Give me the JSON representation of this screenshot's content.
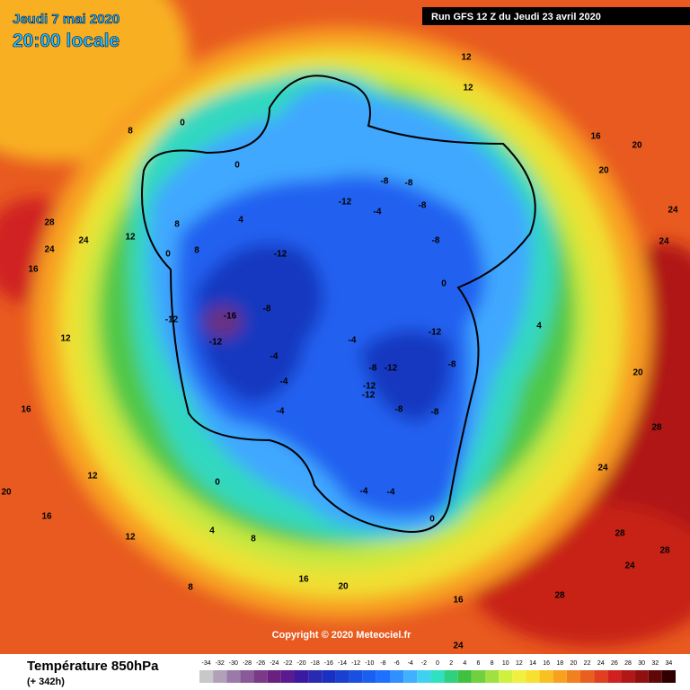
{
  "header": {
    "date": "Jeudi 7 mai 2020",
    "time": "20:00 locale",
    "run": "Run GFS 12 Z du Jeudi 23 avril 2020"
  },
  "map": {
    "labels": [
      28,
      24,
      24,
      16,
      12,
      8,
      4,
      0,
      -12,
      -12,
      -16,
      -12,
      -8,
      -4,
      -4,
      -4,
      -12,
      -8,
      -8,
      -8,
      -4,
      -8,
      -4,
      -12,
      -12,
      -8,
      -12,
      -12,
      -8,
      -8,
      -8,
      -4,
      -4,
      0,
      0,
      0,
      0,
      0,
      4,
      8,
      8,
      12,
      12,
      16,
      20,
      20,
      24,
      24,
      28,
      28,
      24,
      20,
      16,
      16,
      20,
      24,
      28,
      28,
      24,
      20,
      16,
      12,
      12,
      8,
      8,
      4,
      16,
      12
    ]
  },
  "copyright": "Copyright © 2020 Meteociel.fr",
  "legend": {
    "title": "Température 850hPa",
    "lead": "(+ 342h)",
    "ticks": [
      -34,
      -32,
      -30,
      -28,
      -26,
      -24,
      -22,
      -20,
      -18,
      -16,
      -14,
      -12,
      -10,
      -8,
      -6,
      -4,
      -2,
      0,
      2,
      4,
      6,
      8,
      10,
      12,
      14,
      16,
      18,
      20,
      22,
      24,
      26,
      28,
      30,
      32,
      34
    ],
    "colors": [
      "#c8c8c8",
      "#b0a0b8",
      "#9a7aa8",
      "#8a5a98",
      "#7a3a88",
      "#6a2080",
      "#5a1a90",
      "#3a1aa0",
      "#2a2ab0",
      "#1a30c0",
      "#1a40d0",
      "#1a50e0",
      "#1a60f0",
      "#2070ff",
      "#3090ff",
      "#40b0ff",
      "#40d0f0",
      "#30e0c0",
      "#30d080",
      "#40c040",
      "#70d040",
      "#a0e040",
      "#d0f040",
      "#f0f040",
      "#f8e030",
      "#f8c020",
      "#f8a020",
      "#f08020",
      "#e86020",
      "#e04020",
      "#d02020",
      "#b01818",
      "#901010",
      "#600808",
      "#300000"
    ]
  }
}
